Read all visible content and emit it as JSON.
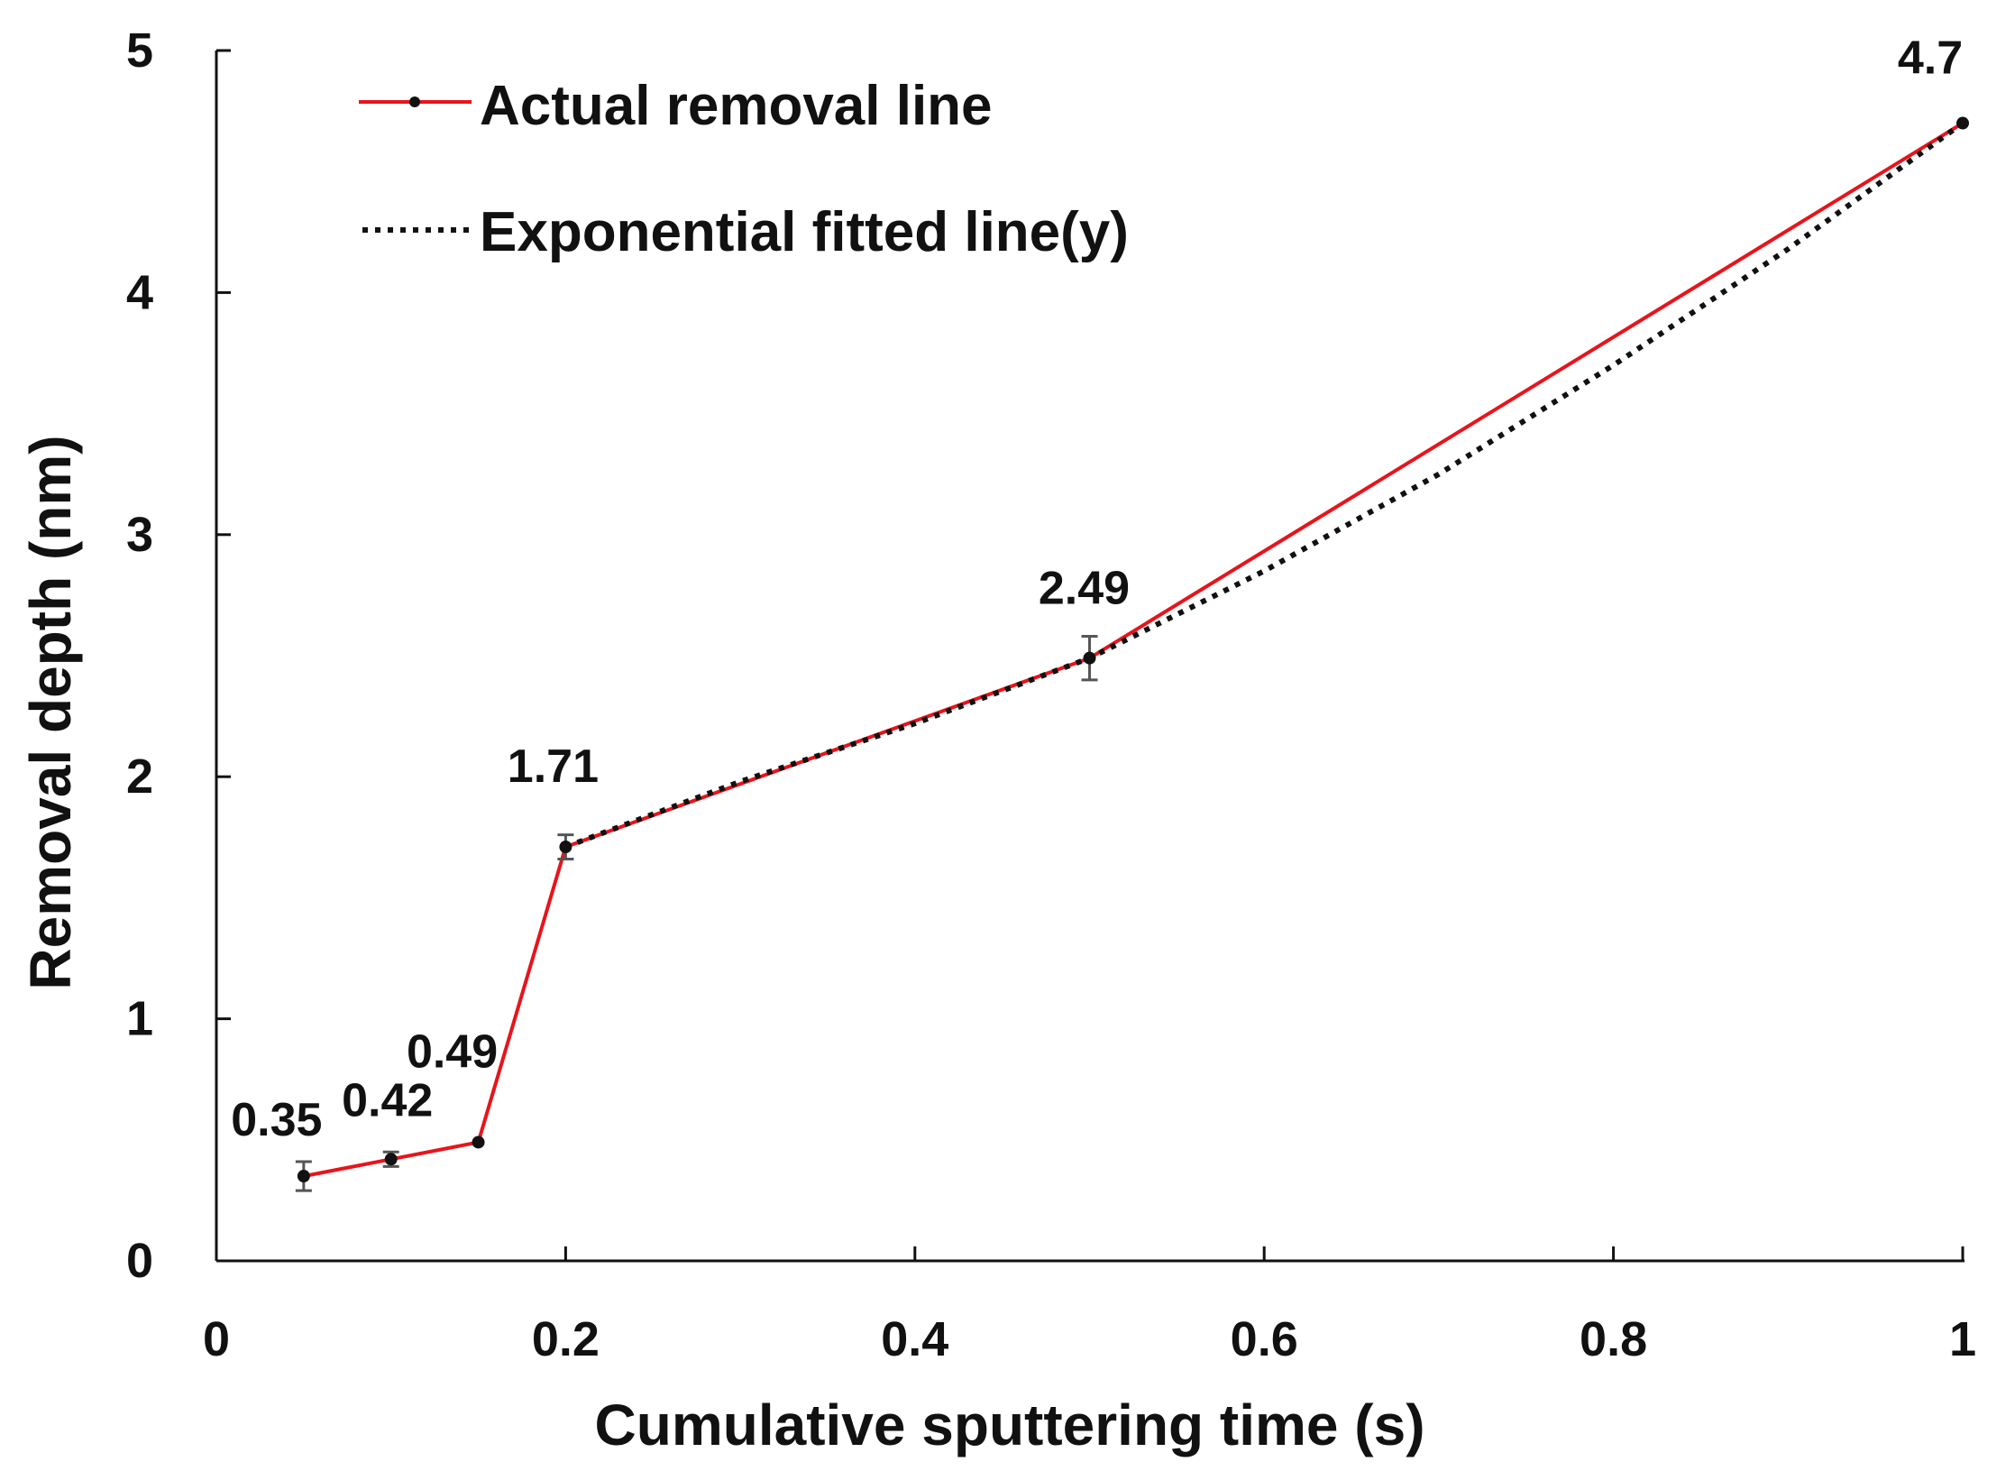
{
  "chart_data": {
    "type": "line",
    "title": "",
    "xlabel": "Cumulative sputtering time (s)",
    "ylabel": "Removal depth (nm)",
    "xlim": [
      0,
      1
    ],
    "ylim": [
      0,
      5
    ],
    "x_ticks": [
      0,
      0.2,
      0.4,
      0.6,
      0.8,
      1
    ],
    "x_tick_labels": [
      "0",
      "0.2",
      "0.4",
      "0.6",
      "0.8",
      "1"
    ],
    "y_ticks": [
      0,
      1,
      2,
      3,
      4,
      5
    ],
    "y_tick_labels": [
      "0",
      "1",
      "2",
      "3",
      "4",
      "5"
    ],
    "grid": false,
    "legend_position": "top-left",
    "series": [
      {
        "name": "Actual removal line",
        "style": "solid",
        "color": "#e8141b",
        "marker": true,
        "x": [
          0.05,
          0.1,
          0.15,
          0.2,
          0.5,
          1.0
        ],
        "values": [
          0.35,
          0.42,
          0.49,
          1.71,
          2.49,
          4.7
        ],
        "error": [
          0.06,
          0.03,
          0.0,
          0.05,
          0.09,
          0.0
        ],
        "labels": [
          "0.35",
          "0.42",
          "0.49",
          "1.71",
          "2.49",
          "4.7"
        ]
      },
      {
        "name": "Exponential fitted line(y)",
        "style": "dotted",
        "color": "#111111",
        "marker": false,
        "x": [
          0.2,
          0.3,
          0.4,
          0.5,
          0.6,
          0.7,
          0.8,
          0.9,
          1.0
        ],
        "values": [
          1.71,
          1.98,
          2.22,
          2.49,
          2.85,
          3.25,
          3.7,
          4.18,
          4.7
        ]
      }
    ]
  }
}
